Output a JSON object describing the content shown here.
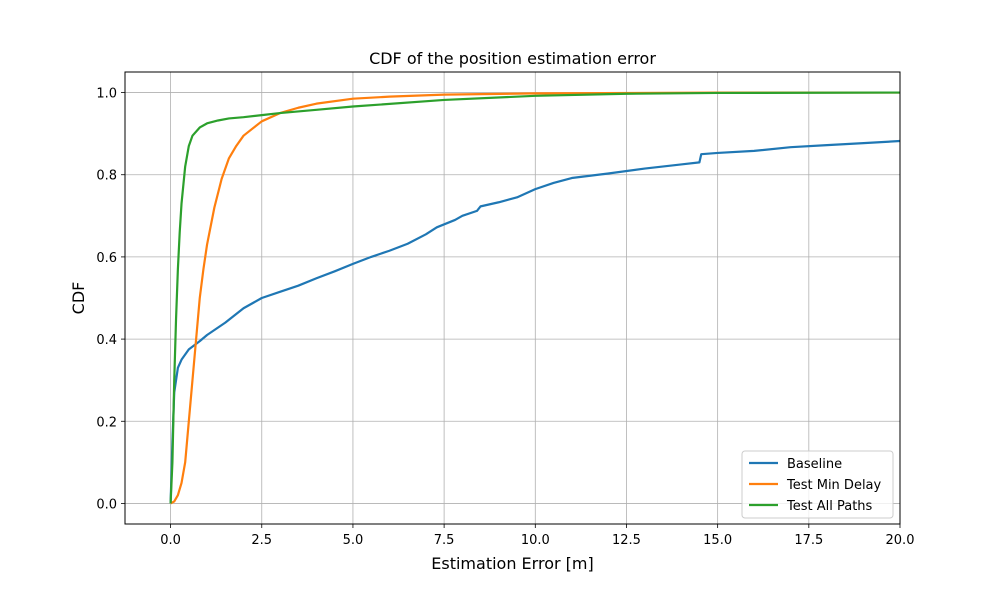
{
  "chart_data": {
    "type": "line",
    "title": "CDF of the position estimation error",
    "xlabel": "Estimation Error [m]",
    "ylabel": "CDF",
    "xlim": [
      -1.25,
      20.0
    ],
    "ylim": [
      -0.05,
      1.05
    ],
    "xticks": [
      0.0,
      2.5,
      5.0,
      7.5,
      10.0,
      12.5,
      15.0,
      17.5,
      20.0
    ],
    "xtick_labels": [
      "0.0",
      "2.5",
      "5.0",
      "7.5",
      "10.0",
      "12.5",
      "15.0",
      "17.5",
      "20.0"
    ],
    "yticks": [
      0.0,
      0.2,
      0.4,
      0.6,
      0.8,
      1.0
    ],
    "ytick_labels": [
      "0.0",
      "0.2",
      "0.4",
      "0.6",
      "0.8",
      "1.0"
    ],
    "grid": true,
    "legend_position": "lower-right",
    "series": [
      {
        "name": "Baseline",
        "color": "#1f77b4",
        "points": [
          [
            0.0,
            0.0
          ],
          [
            0.05,
            0.15
          ],
          [
            0.1,
            0.27
          ],
          [
            0.2,
            0.33
          ],
          [
            0.3,
            0.35
          ],
          [
            0.5,
            0.375
          ],
          [
            0.8,
            0.395
          ],
          [
            1.0,
            0.41
          ],
          [
            1.5,
            0.44
          ],
          [
            2.0,
            0.475
          ],
          [
            2.5,
            0.5
          ],
          [
            3.0,
            0.515
          ],
          [
            3.5,
            0.53
          ],
          [
            4.0,
            0.548
          ],
          [
            4.5,
            0.565
          ],
          [
            5.0,
            0.583
          ],
          [
            5.5,
            0.6
          ],
          [
            6.0,
            0.615
          ],
          [
            6.5,
            0.632
          ],
          [
            7.0,
            0.655
          ],
          [
            7.3,
            0.672
          ],
          [
            7.8,
            0.69
          ],
          [
            8.0,
            0.7
          ],
          [
            8.4,
            0.712
          ],
          [
            8.5,
            0.723
          ],
          [
            9.0,
            0.733
          ],
          [
            9.5,
            0.745
          ],
          [
            10.0,
            0.765
          ],
          [
            10.5,
            0.78
          ],
          [
            11.0,
            0.792
          ],
          [
            12.0,
            0.803
          ],
          [
            13.0,
            0.815
          ],
          [
            14.0,
            0.825
          ],
          [
            14.5,
            0.83
          ],
          [
            14.55,
            0.85
          ],
          [
            15.0,
            0.853
          ],
          [
            16.0,
            0.858
          ],
          [
            17.0,
            0.867
          ],
          [
            18.0,
            0.872
          ],
          [
            19.0,
            0.877
          ],
          [
            20.0,
            0.882
          ]
        ]
      },
      {
        "name": "Test Min Delay",
        "color": "#ff7f0e",
        "points": [
          [
            0.0,
            0.0
          ],
          [
            0.1,
            0.005
          ],
          [
            0.2,
            0.02
          ],
          [
            0.3,
            0.05
          ],
          [
            0.4,
            0.1
          ],
          [
            0.5,
            0.2
          ],
          [
            0.6,
            0.3
          ],
          [
            0.7,
            0.4
          ],
          [
            0.8,
            0.5
          ],
          [
            0.9,
            0.57
          ],
          [
            1.0,
            0.63
          ],
          [
            1.2,
            0.72
          ],
          [
            1.4,
            0.79
          ],
          [
            1.6,
            0.84
          ],
          [
            1.8,
            0.87
          ],
          [
            2.0,
            0.895
          ],
          [
            2.5,
            0.93
          ],
          [
            3.0,
            0.95
          ],
          [
            3.5,
            0.963
          ],
          [
            4.0,
            0.973
          ],
          [
            5.0,
            0.985
          ],
          [
            6.0,
            0.99
          ],
          [
            7.5,
            0.995
          ],
          [
            10.0,
            0.998
          ],
          [
            15.0,
            1.0
          ],
          [
            20.0,
            1.0
          ]
        ]
      },
      {
        "name": "Test All Paths",
        "color": "#2ca02c",
        "points": [
          [
            0.0,
            0.0
          ],
          [
            0.05,
            0.1
          ],
          [
            0.1,
            0.3
          ],
          [
            0.15,
            0.45
          ],
          [
            0.2,
            0.57
          ],
          [
            0.25,
            0.66
          ],
          [
            0.3,
            0.73
          ],
          [
            0.4,
            0.82
          ],
          [
            0.5,
            0.87
          ],
          [
            0.6,
            0.895
          ],
          [
            0.8,
            0.915
          ],
          [
            1.0,
            0.925
          ],
          [
            1.3,
            0.932
          ],
          [
            1.6,
            0.937
          ],
          [
            2.0,
            0.94
          ],
          [
            2.5,
            0.945
          ],
          [
            3.0,
            0.95
          ],
          [
            4.0,
            0.958
          ],
          [
            5.0,
            0.966
          ],
          [
            7.5,
            0.982
          ],
          [
            10.0,
            0.992
          ],
          [
            12.5,
            0.997
          ],
          [
            15.0,
            0.999
          ],
          [
            20.0,
            1.0
          ]
        ]
      }
    ]
  }
}
